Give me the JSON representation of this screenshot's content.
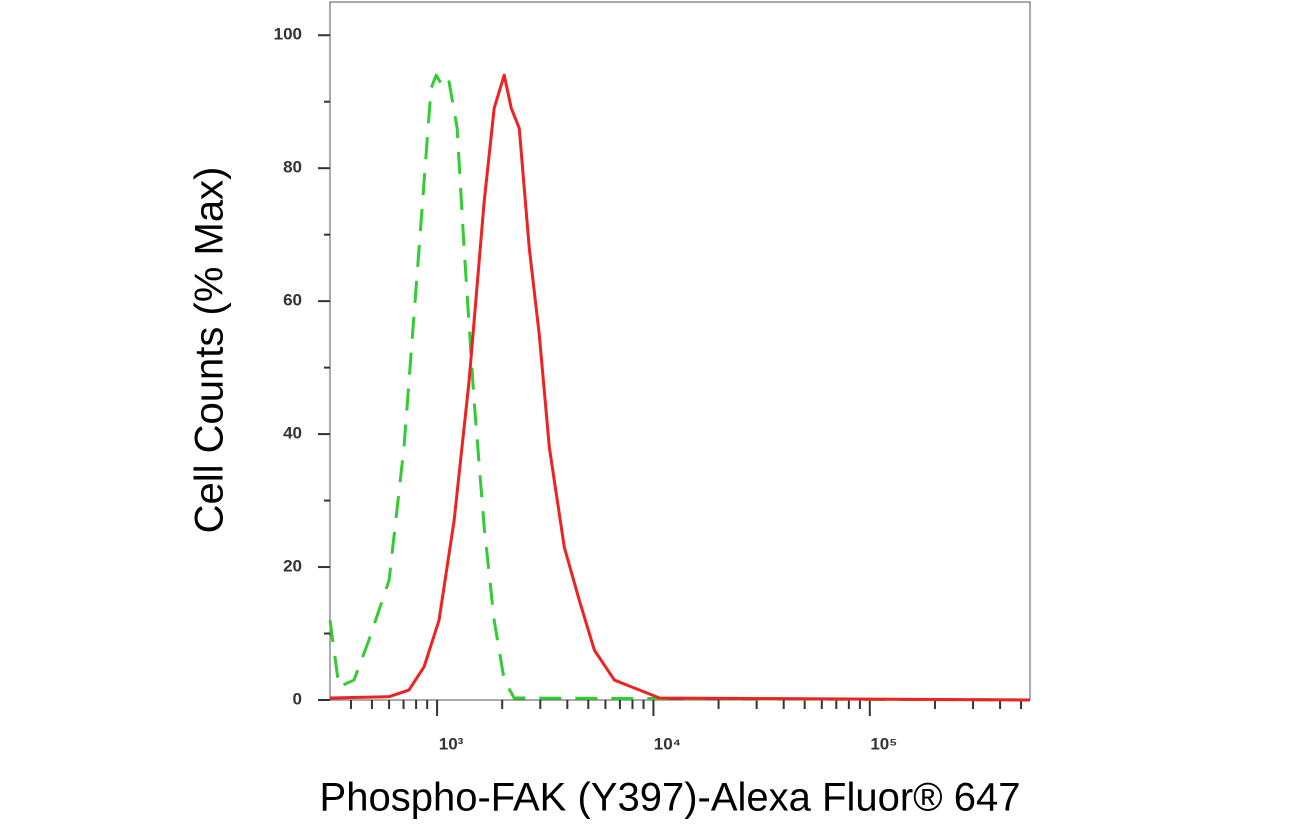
{
  "chart_data": {
    "type": "line",
    "xlabel": "Phospho-FAK (Y397)-Alexa Fluor® 647",
    "ylabel": "Cell Counts (% Max)",
    "xscale": "log",
    "xlim": [
      320,
      550000
    ],
    "ylim": [
      0,
      105
    ],
    "xticks": [
      {
        "value": 1000,
        "label": "10³"
      },
      {
        "value": 10000,
        "label": "10⁴"
      },
      {
        "value": 100000,
        "label": "10⁵"
      }
    ],
    "xminorticks": [
      400,
      500,
      600,
      700,
      800,
      900,
      2000,
      3000,
      4000,
      5000,
      6000,
      7000,
      8000,
      9000,
      20000,
      30000,
      40000,
      50000,
      60000,
      70000,
      80000,
      90000,
      200000,
      300000,
      400000,
      500000
    ],
    "yticks": [
      0,
      20,
      40,
      60,
      80,
      100
    ],
    "yminorticks": [
      10,
      30,
      50,
      70,
      90
    ],
    "series": [
      {
        "color": "#33cc33",
        "dashed": true,
        "x": [
          320,
          352,
          413,
          484,
          600,
          703,
          826,
          938,
          990,
          1077,
          1136,
          1238,
          1333,
          1483,
          1651,
          1836,
          2043,
          2271,
          550000
        ],
        "values": [
          12,
          2,
          3,
          9,
          18,
          38,
          68,
          92,
          94,
          92,
          93,
          86,
          68,
          45,
          26,
          12,
          3,
          0.3,
          0
        ]
      },
      {
        "color": "#ee2222",
        "dashed": false,
        "x": [
          320,
          600,
          741,
          871,
          1021,
          1199,
          1406,
          1651,
          1836,
          2043,
          2203,
          2398,
          2667,
          2966,
          3303,
          3872,
          4543,
          5334,
          6597,
          8610,
          10660,
          550000
        ],
        "values": [
          0.3,
          0.5,
          1.5,
          5,
          12,
          27,
          48,
          75,
          89,
          94,
          89,
          86,
          68,
          55,
          38,
          23,
          15,
          7.5,
          3,
          1.5,
          0.3,
          0
        ]
      }
    ]
  }
}
